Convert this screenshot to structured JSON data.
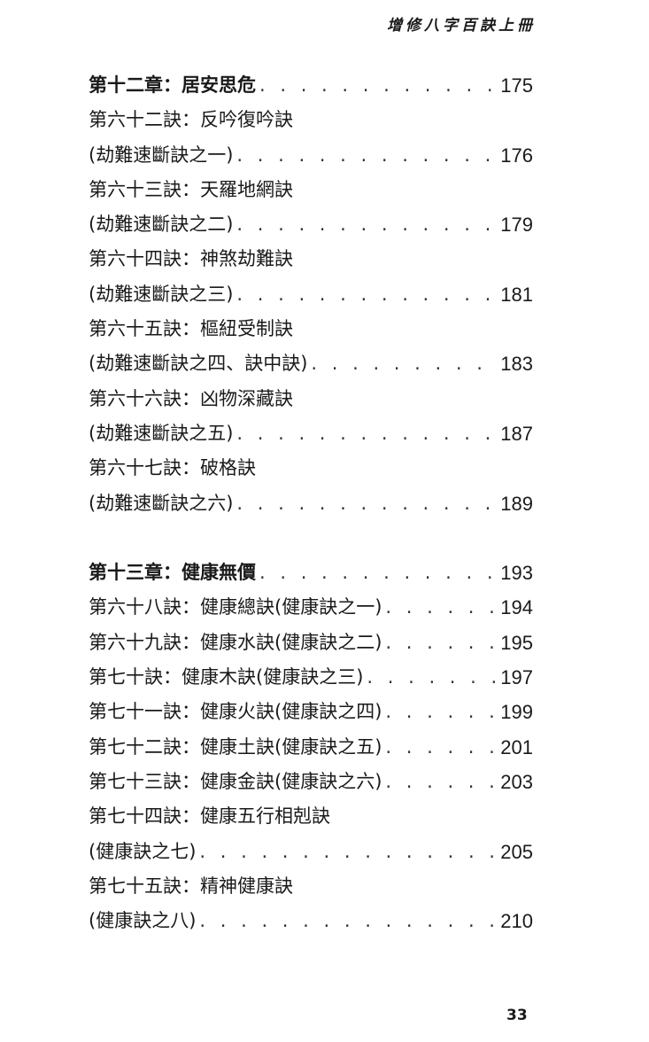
{
  "running_head": "增修八字百訣上冊",
  "sections": [
    {
      "lines": [
        {
          "text": "第十二章：居安思危",
          "page": "175",
          "bold": true
        },
        {
          "text": "第六十二訣：反吟復吟訣",
          "page": ""
        },
        {
          "text": "(劫難速斷訣之一)",
          "page": "176"
        },
        {
          "text": "第六十三訣：天羅地網訣",
          "page": ""
        },
        {
          "text": "(劫難速斷訣之二)",
          "page": "179"
        },
        {
          "text": "第六十四訣：神煞劫難訣",
          "page": ""
        },
        {
          "text": "(劫難速斷訣之三)",
          "page": "181"
        },
        {
          "text": "第六十五訣：樞紐受制訣",
          "page": ""
        },
        {
          "text": "(劫難速斷訣之四、訣中訣)",
          "page": "183"
        },
        {
          "text": "第六十六訣：凶物深藏訣",
          "page": ""
        },
        {
          "text": "(劫難速斷訣之五)",
          "page": "187"
        },
        {
          "text": "第六十七訣：破格訣",
          "page": ""
        },
        {
          "text": "(劫難速斷訣之六)",
          "page": "189"
        }
      ]
    },
    {
      "lines": [
        {
          "text": "第十三章：健康無價",
          "page": "193",
          "bold": true
        },
        {
          "text": "第六十八訣：健康總訣(健康訣之一)",
          "page": "194"
        },
        {
          "text": "第六十九訣：健康水訣(健康訣之二)",
          "page": "195"
        },
        {
          "text": "第七十訣：健康木訣(健康訣之三)",
          "page": "197"
        },
        {
          "text": "第七十一訣：健康火訣(健康訣之四)",
          "page": "199"
        },
        {
          "text": "第七十二訣：健康土訣(健康訣之五)",
          "page": "201"
        },
        {
          "text": "第七十三訣：健康金訣(健康訣之六)",
          "page": "203"
        },
        {
          "text": "第七十四訣：健康五行相剋訣",
          "page": ""
        },
        {
          "text": "(健康訣之七)",
          "page": "205"
        },
        {
          "text": "第七十五訣：精神健康訣",
          "page": ""
        },
        {
          "text": "(健康訣之八)",
          "page": "210"
        }
      ]
    }
  ],
  "folio": "33"
}
